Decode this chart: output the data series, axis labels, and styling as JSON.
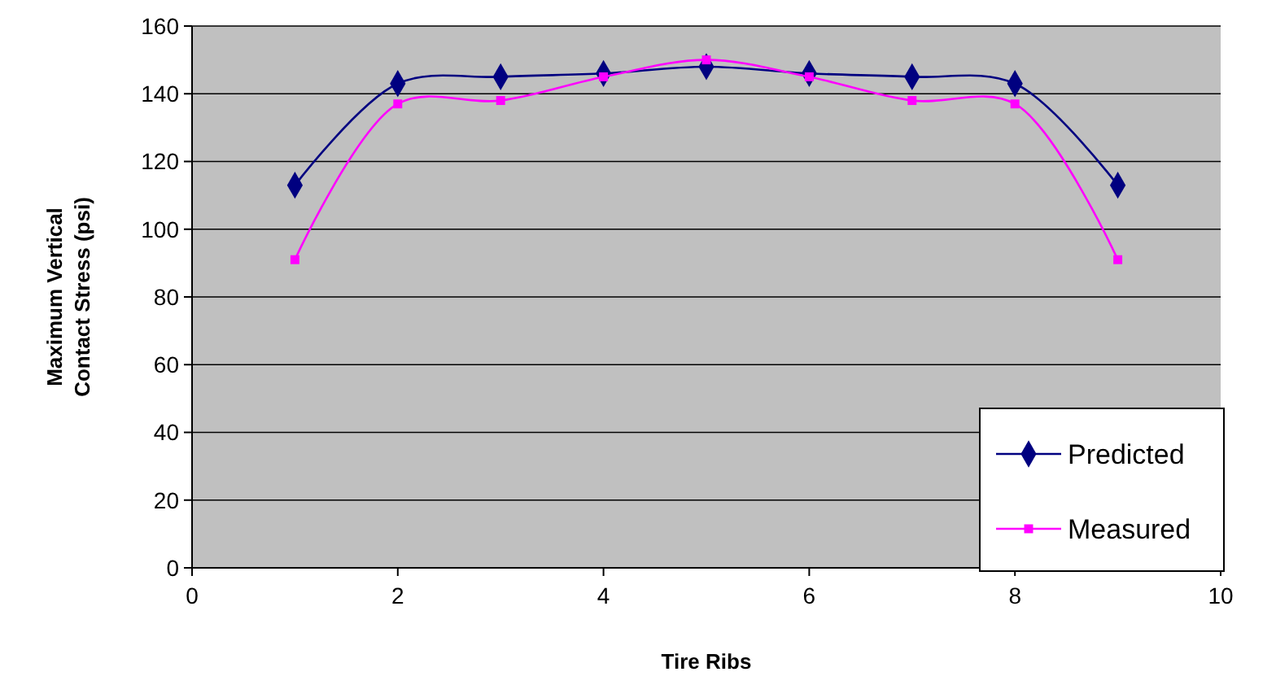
{
  "chart_data": {
    "type": "line",
    "xlabel": "Tire Ribs",
    "ylabel": "Maximum Vertical Contact Stress (psi)",
    "x": [
      1,
      2,
      3,
      4,
      5,
      6,
      7,
      8,
      9
    ],
    "xlim": [
      0,
      10
    ],
    "xticks": [
      0,
      2,
      4,
      6,
      8,
      10
    ],
    "ylim": [
      0,
      160
    ],
    "yticks": [
      0,
      20,
      40,
      60,
      80,
      100,
      120,
      140,
      160
    ],
    "grid": "y",
    "legend": "bottom right",
    "series": [
      {
        "name": "Predicted",
        "color": "#000080",
        "marker": "diamond",
        "values": [
          113,
          143,
          145,
          146,
          148,
          146,
          145,
          143,
          113
        ]
      },
      {
        "name": "Measured",
        "color": "#ff00ff",
        "marker": "square",
        "values": [
          91,
          137,
          138,
          145,
          150,
          145,
          138,
          137,
          91
        ]
      }
    ]
  }
}
